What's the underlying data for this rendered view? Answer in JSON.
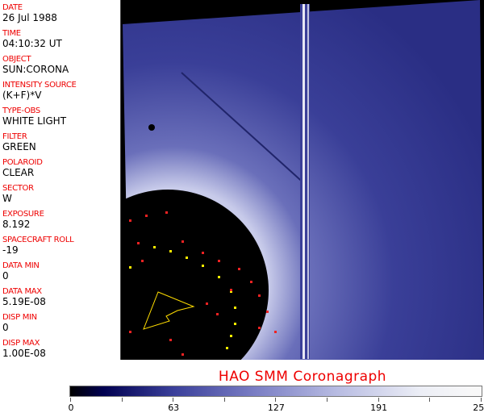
{
  "fields": [
    {
      "label": "DATE",
      "value": "26 Jul 1988"
    },
    {
      "label": "TIME",
      "value": "04:10:32 UT"
    },
    {
      "label": "OBJECT",
      "value": "SUN:CORONA"
    },
    {
      "label": "INTENSITY SOURCE",
      "value": "(K+F)*V"
    },
    {
      "label": "TYPE-OBS",
      "value": "WHITE LIGHT"
    },
    {
      "label": "FILTER",
      "value": "GREEN"
    },
    {
      "label": "POLAROID",
      "value": "CLEAR"
    },
    {
      "label": "SECTOR",
      "value": "W"
    },
    {
      "label": "EXPOSURE",
      "value": "8.192"
    },
    {
      "label": "SPACECRAFT ROLL",
      "value": "-19"
    },
    {
      "label": "DATA MIN",
      "value": "0"
    },
    {
      "label": "DATA MAX",
      "value": "5.19E-08"
    },
    {
      "label": "DISP MIN",
      "value": "0"
    },
    {
      "label": "DISP MAX",
      "value": "1.00E-08"
    }
  ],
  "title": "HAO   SMM  Coronagraph",
  "colorbar": {
    "ticks": [
      "0",
      "63",
      "127",
      "191",
      "255"
    ],
    "min": 0,
    "max": 255,
    "colors": {
      "low": "#000000",
      "mid": "#3a3f9a",
      "high": "#f8f8f8",
      "label": "#ee0000"
    }
  }
}
